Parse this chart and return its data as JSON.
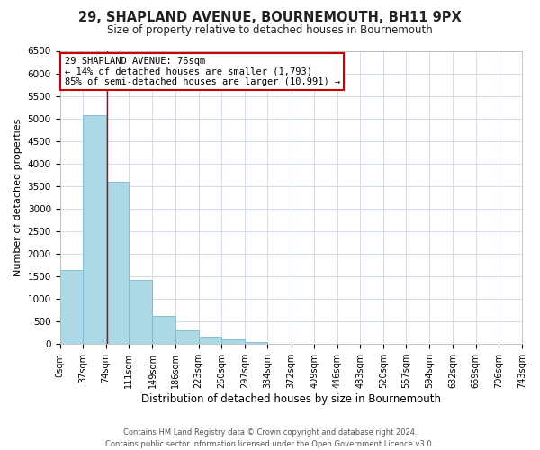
{
  "title": "29, SHAPLAND AVENUE, BOURNEMOUTH, BH11 9PX",
  "subtitle": "Size of property relative to detached houses in Bournemouth",
  "xlabel": "Distribution of detached houses by size in Bournemouth",
  "ylabel": "Number of detached properties",
  "bar_color": "#add8e6",
  "bar_edge_color": "#7ab8d4",
  "bin_edges": [
    0,
    37,
    74,
    111,
    149,
    186,
    223,
    260,
    297,
    334,
    372,
    409,
    446,
    483,
    520,
    557,
    594,
    632,
    669,
    706,
    743
  ],
  "bar_heights": [
    1650,
    5080,
    3600,
    1430,
    620,
    310,
    155,
    100,
    50,
    0,
    0,
    0,
    0,
    0,
    0,
    0,
    0,
    0,
    0,
    0
  ],
  "tick_labels": [
    "0sqm",
    "37sqm",
    "74sqm",
    "111sqm",
    "149sqm",
    "186sqm",
    "223sqm",
    "260sqm",
    "297sqm",
    "334sqm",
    "372sqm",
    "409sqm",
    "446sqm",
    "483sqm",
    "520sqm",
    "557sqm",
    "594sqm",
    "632sqm",
    "669sqm",
    "706sqm",
    "743sqm"
  ],
  "ylim": [
    0,
    6500
  ],
  "yticks": [
    0,
    500,
    1000,
    1500,
    2000,
    2500,
    3000,
    3500,
    4000,
    4500,
    5000,
    5500,
    6000,
    6500
  ],
  "property_line_x": 76,
  "property_line_color": "#cc0000",
  "annotation_line1": "29 SHAPLAND AVENUE: 76sqm",
  "annotation_line2": "← 14% of detached houses are smaller (1,793)",
  "annotation_line3": "85% of semi-detached houses are larger (10,991) →",
  "annotation_box_color": "#ffffff",
  "annotation_box_edge_color": "#cc0000",
  "footer_line1": "Contains HM Land Registry data © Crown copyright and database right 2024.",
  "footer_line2": "Contains public sector information licensed under the Open Government Licence v3.0.",
  "background_color": "#ffffff",
  "grid_color": "#ccd8e8"
}
